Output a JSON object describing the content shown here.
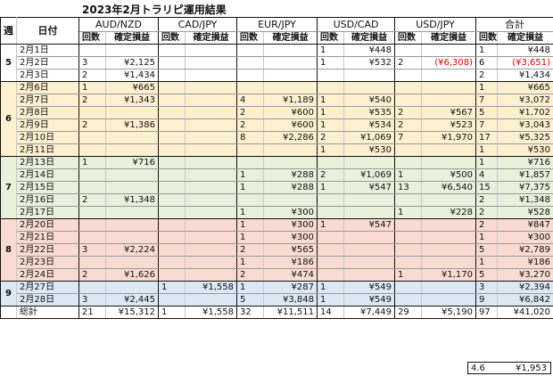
{
  "title": "2023年2月トラリピ運用結果",
  "header": {
    "week": "週",
    "date": "日付",
    "pairs": [
      "AUD/NZD",
      "CAD/JPY",
      "EUR/JPY",
      "USD/CAD",
      "USD/JPY",
      "合計"
    ],
    "count_label": "回数",
    "pnl_label": "確定損益"
  },
  "weeks": [
    {
      "label": "5",
      "theme": "w5",
      "rows": [
        {
          "date": "2月1日",
          "cells": [
            [
              "",
              ""
            ],
            [
              "",
              ""
            ],
            [
              "",
              ""
            ],
            [
              "1",
              "¥448"
            ],
            [
              "",
              ""
            ],
            [
              "1",
              "¥448"
            ]
          ]
        },
        {
          "date": "2月2日",
          "cells": [
            [
              "3",
              "¥2,125"
            ],
            [
              "",
              ""
            ],
            [
              "",
              ""
            ],
            [
              "1",
              "¥532"
            ],
            [
              "2",
              "(¥6,308)"
            ],
            [
              "6",
              "(¥3,651)"
            ]
          ]
        },
        {
          "date": "2月3日",
          "cells": [
            [
              "2",
              "¥1,434"
            ],
            [
              "",
              ""
            ],
            [
              "",
              ""
            ],
            [
              "",
              ""
            ],
            [
              "",
              ""
            ],
            [
              "2",
              "¥1,434"
            ]
          ]
        }
      ]
    },
    {
      "label": "6",
      "theme": "w6",
      "rows": [
        {
          "date": "2月6日",
          "cells": [
            [
              "1",
              "¥665"
            ],
            [
              "",
              ""
            ],
            [
              "",
              ""
            ],
            [
              "",
              ""
            ],
            [
              "",
              ""
            ],
            [
              "1",
              "¥665"
            ]
          ]
        },
        {
          "date": "2月7日",
          "cells": [
            [
              "2",
              "¥1,343"
            ],
            [
              "",
              ""
            ],
            [
              "4",
              "¥1,189"
            ],
            [
              "1",
              "¥540"
            ],
            [
              "",
              ""
            ],
            [
              "7",
              "¥3,072"
            ]
          ]
        },
        {
          "date": "2月8日",
          "cells": [
            [
              "",
              ""
            ],
            [
              "",
              ""
            ],
            [
              "2",
              "¥600"
            ],
            [
              "1",
              "¥535"
            ],
            [
              "2",
              "¥567"
            ],
            [
              "5",
              "¥1,702"
            ]
          ]
        },
        {
          "date": "2月9日",
          "cells": [
            [
              "2",
              "¥1,386"
            ],
            [
              "",
              ""
            ],
            [
              "2",
              "¥600"
            ],
            [
              "1",
              "¥534"
            ],
            [
              "2",
              "¥523"
            ],
            [
              "7",
              "¥3,043"
            ]
          ]
        },
        {
          "date": "2月10日",
          "cells": [
            [
              "",
              ""
            ],
            [
              "",
              ""
            ],
            [
              "8",
              "¥2,286"
            ],
            [
              "2",
              "¥1,069"
            ],
            [
              "7",
              "¥1,970"
            ],
            [
              "17",
              "¥5,325"
            ]
          ]
        },
        {
          "date": "2月11日",
          "cells": [
            [
              "",
              ""
            ],
            [
              "",
              ""
            ],
            [
              "",
              ""
            ],
            [
              "1",
              "¥530"
            ],
            [
              "",
              ""
            ],
            [
              "1",
              "¥530"
            ]
          ]
        }
      ]
    },
    {
      "label": "7",
      "theme": "w7",
      "rows": [
        {
          "date": "2月13日",
          "cells": [
            [
              "1",
              "¥716"
            ],
            [
              "",
              ""
            ],
            [
              "",
              ""
            ],
            [
              "",
              ""
            ],
            [
              "",
              ""
            ],
            [
              "1",
              "¥716"
            ]
          ]
        },
        {
          "date": "2月14日",
          "cells": [
            [
              "",
              ""
            ],
            [
              "",
              ""
            ],
            [
              "1",
              "¥288"
            ],
            [
              "2",
              "¥1,069"
            ],
            [
              "1",
              "¥500"
            ],
            [
              "4",
              "¥1,857"
            ]
          ]
        },
        {
          "date": "2月15日",
          "cells": [
            [
              "",
              ""
            ],
            [
              "",
              ""
            ],
            [
              "1",
              "¥288"
            ],
            [
              "1",
              "¥547"
            ],
            [
              "13",
              "¥6,540"
            ],
            [
              "15",
              "¥7,375"
            ]
          ]
        },
        {
          "date": "2月16日",
          "cells": [
            [
              "2",
              "¥1,348"
            ],
            [
              "",
              ""
            ],
            [
              "",
              ""
            ],
            [
              "",
              ""
            ],
            [
              "",
              ""
            ],
            [
              "2",
              "¥1,348"
            ]
          ]
        },
        {
          "date": "2月17日",
          "cells": [
            [
              "",
              ""
            ],
            [
              "",
              ""
            ],
            [
              "1",
              "¥300"
            ],
            [
              "",
              ""
            ],
            [
              "1",
              "¥228"
            ],
            [
              "2",
              "¥528"
            ]
          ]
        }
      ]
    },
    {
      "label": "8",
      "theme": "w8",
      "rows": [
        {
          "date": "2月20日",
          "cells": [
            [
              "",
              ""
            ],
            [
              "",
              ""
            ],
            [
              "1",
              "¥300"
            ],
            [
              "1",
              "¥547"
            ],
            [
              "",
              ""
            ],
            [
              "2",
              "¥847"
            ]
          ]
        },
        {
          "date": "2月21日",
          "cells": [
            [
              "",
              ""
            ],
            [
              "",
              ""
            ],
            [
              "1",
              "¥300"
            ],
            [
              "",
              ""
            ],
            [
              "",
              ""
            ],
            [
              "1",
              "¥300"
            ]
          ]
        },
        {
          "date": "2月22日",
          "cells": [
            [
              "3",
              "¥2,224"
            ],
            [
              "",
              ""
            ],
            [
              "2",
              "¥565"
            ],
            [
              "",
              ""
            ],
            [
              "",
              ""
            ],
            [
              "5",
              "¥2,789"
            ]
          ]
        },
        {
          "date": "2月23日",
          "cells": [
            [
              "",
              ""
            ],
            [
              "",
              ""
            ],
            [
              "1",
              "¥186"
            ],
            [
              "",
              ""
            ],
            [
              "",
              ""
            ],
            [
              "1",
              "¥186"
            ]
          ]
        },
        {
          "date": "2月24日",
          "cells": [
            [
              "2",
              "¥1,626"
            ],
            [
              "",
              ""
            ],
            [
              "2",
              "¥474"
            ],
            [
              "",
              ""
            ],
            [
              "1",
              "¥1,170"
            ],
            [
              "5",
              "¥3,270"
            ]
          ]
        }
      ]
    },
    {
      "label": "9",
      "theme": "w9",
      "rows": [
        {
          "date": "2月27日",
          "cells": [
            [
              "",
              ""
            ],
            [
              "1",
              "¥1,558"
            ],
            [
              "1",
              "¥287"
            ],
            [
              "1",
              "¥549"
            ],
            [
              "",
              ""
            ],
            [
              "3",
              "¥2,394"
            ]
          ]
        },
        {
          "date": "2月28日",
          "cells": [
            [
              "3",
              "¥2,445"
            ],
            [
              "",
              ""
            ],
            [
              "5",
              "¥3,848"
            ],
            [
              "1",
              "¥549"
            ],
            [
              "",
              ""
            ],
            [
              "9",
              "¥6,842"
            ]
          ]
        }
      ]
    }
  ],
  "total": {
    "label": "総計",
    "cells": [
      [
        "21",
        "¥15,312"
      ],
      [
        "1",
        "¥1,558"
      ],
      [
        "32",
        "¥11,511"
      ],
      [
        "14",
        "¥7,449"
      ],
      [
        "29",
        "¥5,190"
      ],
      [
        "97",
        "¥41,020"
      ]
    ]
  },
  "average": {
    "count": "4.6",
    "amount": "¥1,953"
  }
}
